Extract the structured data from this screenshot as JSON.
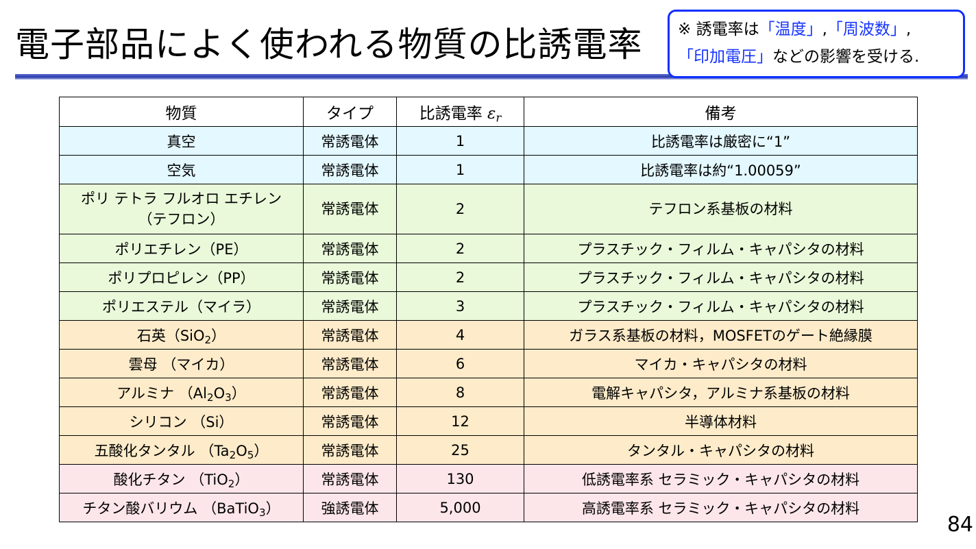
{
  "title": "電子部品によく使われる物質の比誘電率",
  "note": {
    "mark": "※ 誘電率は",
    "temperature": "「温度」",
    "comma": ",",
    "frequency": "「周波数」",
    "voltage": "「印加電圧」",
    "suffix": "などの影響を受ける."
  },
  "table": {
    "headers": {
      "material": "物質",
      "type": "タイプ",
      "permittivity": "比誘電率",
      "permittivity_symbol": "εr",
      "remarks": "備考"
    },
    "rows": [
      {
        "group": "blue",
        "material": "真空",
        "type": "常誘電体",
        "value": "1",
        "remark": "比誘電率は厳密に“1”"
      },
      {
        "group": "blue",
        "material": "空気",
        "type": "常誘電体",
        "value": "1",
        "remark": "比誘電率は約“1.00059”"
      },
      {
        "group": "green",
        "material_line1": "ポリ テトラ フルオロ エチレン",
        "material_line2": "（テフロン）",
        "type": "常誘電体",
        "value": "2",
        "remark": "テフロン系基板の材料"
      },
      {
        "group": "green",
        "material": "ポリエチレン（PE）",
        "type": "常誘電体",
        "value": "2",
        "remark": "プラスチック・フィルム・キャパシタの材料"
      },
      {
        "group": "green",
        "material": "ポリプロピレン（PP）",
        "type": "常誘電体",
        "value": "2",
        "remark": "プラスチック・フィルム・キャパシタの材料"
      },
      {
        "group": "green",
        "material": "ポリエステル（マイラ）",
        "type": "常誘電体",
        "value": "3",
        "remark": "プラスチック・フィルム・キャパシタの材料"
      },
      {
        "group": "orange",
        "material_name": "石英",
        "material_formula": "SiO2",
        "type": "常誘電体",
        "value": "4",
        "remark": "ガラス系基板の材料，MOSFETのゲート絶縁膜"
      },
      {
        "group": "orange",
        "material": "雲母 （マイカ）",
        "type": "常誘電体",
        "value": "6",
        "remark": "マイカ・キャパシタの材料"
      },
      {
        "group": "orange",
        "material_name": "アルミナ",
        "material_formula": "Al2O3",
        "type": "常誘電体",
        "value": "8",
        "remark": "電解キャパシタ，アルミナ系基板の材料"
      },
      {
        "group": "orange",
        "material": "シリコン （Si）",
        "type": "常誘電体",
        "value": "12",
        "remark": "半導体材料"
      },
      {
        "group": "orange",
        "material_name": "五酸化タンタル",
        "material_formula": "Ta2O5",
        "type": "常誘電体",
        "value": "25",
        "remark": "タンタル・キャパシタの材料"
      },
      {
        "group": "pink",
        "material_name": "酸化チタン",
        "material_formula": "TiO2",
        "type": "常誘電体",
        "value": "130",
        "remark": "低誘電率系 セラミック・キャパシタの材料"
      },
      {
        "group": "pink",
        "material_name": "チタン酸バリウム",
        "material_formula": "BaTiO3",
        "type": "強誘電体",
        "value": "5,000",
        "remark": "高誘電率系 セラミック・キャパシタの材料"
      }
    ]
  },
  "page_number": "84"
}
